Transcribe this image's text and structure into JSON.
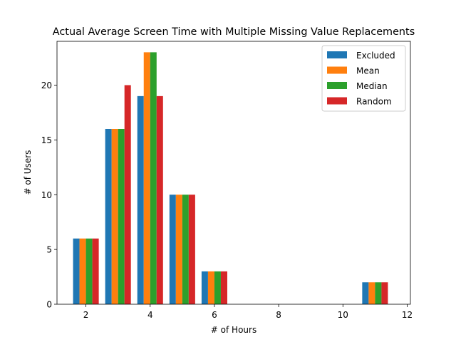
{
  "chart_data": {
    "type": "bar",
    "title": "Actual Average Screen Time with Multiple Missing Value Replacements",
    "xlabel": "# of Hours",
    "ylabel": "# of Users",
    "xlim": [
      1.1,
      12.1
    ],
    "ylim": [
      0,
      24
    ],
    "xticks": [
      2,
      4,
      6,
      8,
      10,
      12
    ],
    "yticks": [
      0,
      5,
      10,
      15,
      20
    ],
    "bin_centers": [
      2,
      3,
      4,
      5,
      6,
      11
    ],
    "bin_group_width": 0.8,
    "legend_position": "top-right",
    "series": [
      {
        "name": "Excluded",
        "color": "#1f77b4",
        "values": [
          6,
          16,
          19,
          10,
          3,
          2
        ]
      },
      {
        "name": "Mean",
        "color": "#ff7f0e",
        "values": [
          6,
          16,
          23,
          10,
          3,
          2
        ]
      },
      {
        "name": "Median",
        "color": "#2ca02c",
        "values": [
          6,
          16,
          23,
          10,
          3,
          2
        ]
      },
      {
        "name": "Random",
        "color": "#d62728",
        "values": [
          6,
          20,
          19,
          10,
          3,
          2
        ]
      }
    ]
  }
}
